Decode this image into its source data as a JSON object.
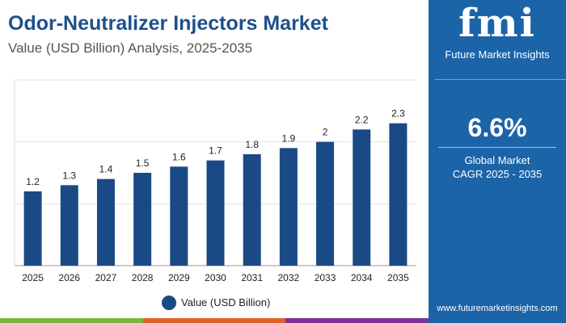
{
  "header": {
    "title": "Odor-Neutralizer Injectors Market",
    "subtitle": "Value (USD Billion) Analysis, 2025-2035"
  },
  "sidebar": {
    "logo_text": "fmi",
    "brand": "Future Market Insights",
    "cagr_value": "6.6%",
    "cagr_label_1": "Global Market",
    "cagr_label_2": "CAGR 2025 - 2035",
    "url": "www.futuremarketinsights.com",
    "color": "#1c64a8"
  },
  "footer_strip_colors": [
    "#7cb342",
    "#e0622a",
    "#7b3294"
  ],
  "chart_data": {
    "type": "bar",
    "title": "Odor-Neutralizer Injectors Market",
    "subtitle": "Value (USD Billion) Analysis, 2025-2035",
    "categories": [
      "2025",
      "2026",
      "2027",
      "2028",
      "2029",
      "2030",
      "2031",
      "2032",
      "2033",
      "2034",
      "2035"
    ],
    "series": [
      {
        "name": "Value (USD Billion)",
        "values": [
          1.2,
          1.3,
          1.4,
          1.5,
          1.6,
          1.7,
          1.8,
          1.9,
          2,
          2.2,
          2.3
        ],
        "color": "#1a4a86"
      }
    ],
    "data_labels": [
      "1.2",
      "1.3",
      "1.4",
      "1.5",
      "1.6",
      "1.7",
      "1.8",
      "1.9",
      "2",
      "2.2",
      "2.3"
    ],
    "ylim": [
      0,
      3
    ],
    "grid": true,
    "legend": "bottom"
  }
}
